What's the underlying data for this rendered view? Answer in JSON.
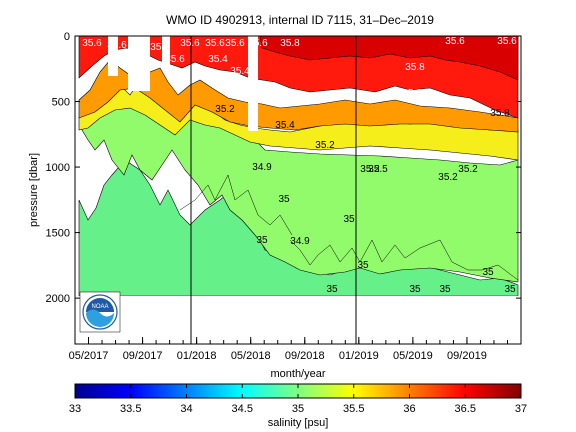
{
  "chart_data": {
    "type": "heatmap",
    "title": "WMO ID 4902913, internal ID 7115, 31–Dec–2019",
    "xlabel": "month/year",
    "ylabel": "pressure [dbar]",
    "x_ticks": [
      "05/2017",
      "09/2017",
      "01/2018",
      "05/2018",
      "09/2018",
      "01/2019",
      "05/2019",
      "09/2019"
    ],
    "y_ticks": [
      "0",
      "500",
      "1000",
      "1500",
      "2000"
    ],
    "ylim": [
      2350,
      0
    ],
    "xlim": [
      "2017-04",
      "2019-12-31"
    ],
    "year_boundaries": [
      "2018-01-01",
      "2019-01-01"
    ],
    "colorbar": {
      "label": "salinity [psu]",
      "ticks": [
        "33",
        "33.5",
        "34",
        "34.5",
        "35",
        "35.5",
        "36",
        "36.5",
        "37"
      ],
      "range": [
        33,
        37
      ],
      "colors": [
        "#00008f",
        "#0000ff",
        "#0080ff",
        "#00ffff",
        "#80ff80",
        "#ffff00",
        "#ff8000",
        "#ff0000",
        "#800000"
      ]
    },
    "contour_labels": [
      "35.6",
      "35.6",
      "35.4",
      "35.6",
      "35.6",
      "35.6",
      "35.6",
      "35.8",
      "35.6",
      "35.8",
      "35.4",
      "35.4",
      "35.2",
      "35.6",
      "35.8",
      "35.4",
      "34.9",
      "35.2",
      "35.2",
      "35.2",
      "35.2",
      "35",
      "35",
      "35",
      "34.9",
      "35",
      "35",
      "35",
      "35",
      "35",
      "35",
      "35.5",
      "35.6",
      "35.6"
    ],
    "logo": "NOAA"
  }
}
